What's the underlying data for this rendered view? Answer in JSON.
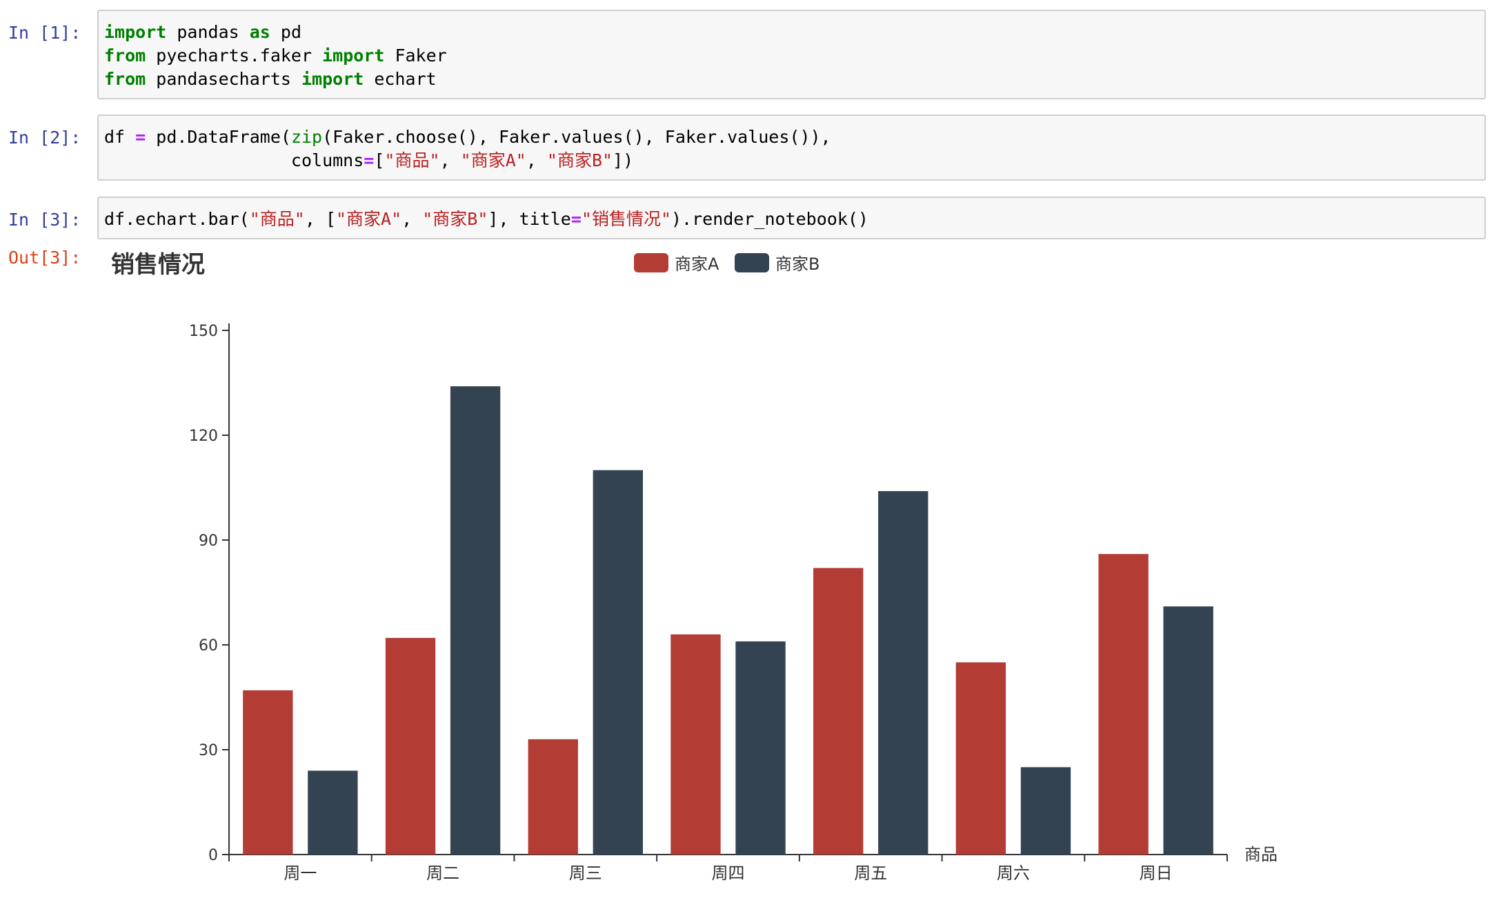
{
  "cells": [
    {
      "prompt": "In [1]:",
      "lines": [
        [
          {
            "t": "import",
            "c": "kw"
          },
          {
            "t": " pandas "
          },
          {
            "t": "as",
            "c": "kw"
          },
          {
            "t": " pd"
          }
        ],
        [
          {
            "t": "from",
            "c": "kw"
          },
          {
            "t": " pyecharts.faker "
          },
          {
            "t": "import",
            "c": "kw"
          },
          {
            "t": " Faker"
          }
        ],
        [
          {
            "t": "from",
            "c": "kw"
          },
          {
            "t": " pandasecharts "
          },
          {
            "t": "import",
            "c": "kw"
          },
          {
            "t": " echart"
          }
        ]
      ]
    },
    {
      "prompt": "In [2]:",
      "lines": [
        [
          {
            "t": "df "
          },
          {
            "t": "=",
            "c": "op"
          },
          {
            "t": " pd.DataFrame("
          },
          {
            "t": "zip",
            "c": "bi"
          },
          {
            "t": "(Faker.choose(), Faker.values(), Faker.values()),"
          }
        ],
        [
          {
            "t": "                  columns"
          },
          {
            "t": "=",
            "c": "op"
          },
          {
            "t": "["
          },
          {
            "t": "\"商品\"",
            "c": "st"
          },
          {
            "t": ", "
          },
          {
            "t": "\"商家A\"",
            "c": "st"
          },
          {
            "t": ", "
          },
          {
            "t": "\"商家B\"",
            "c": "st"
          },
          {
            "t": "])"
          }
        ]
      ]
    },
    {
      "prompt": "In [3]:",
      "lines": [
        [
          {
            "t": "df.echart.bar("
          },
          {
            "t": "\"商品\"",
            "c": "st"
          },
          {
            "t": ", ["
          },
          {
            "t": "\"商家A\"",
            "c": "st"
          },
          {
            "t": ", "
          },
          {
            "t": "\"商家B\"",
            "c": "st"
          },
          {
            "t": "], title"
          },
          {
            "t": "=",
            "c": "op"
          },
          {
            "t": "\"销售情况\"",
            "c": "st"
          },
          {
            "t": ").render_notebook()"
          }
        ]
      ]
    }
  ],
  "output": {
    "prompt": "Out[3]:"
  },
  "chart_data": {
    "type": "bar",
    "title": "销售情况",
    "xlabel": "商品",
    "ylabel": "",
    "categories": [
      "周一",
      "周二",
      "周三",
      "周四",
      "周五",
      "周六",
      "周日"
    ],
    "series": [
      {
        "name": "商家A",
        "color": "#b33d35",
        "values": [
          47,
          62,
          33,
          63,
          82,
          55,
          86
        ]
      },
      {
        "name": "商家B",
        "color": "#334352",
        "values": [
          24,
          134,
          110,
          61,
          104,
          25,
          71
        ]
      }
    ],
    "ylim": [
      0,
      150
    ],
    "yticks": [
      0,
      30,
      60,
      90,
      120,
      150
    ],
    "legend_position": "top-center",
    "grid": false
  }
}
